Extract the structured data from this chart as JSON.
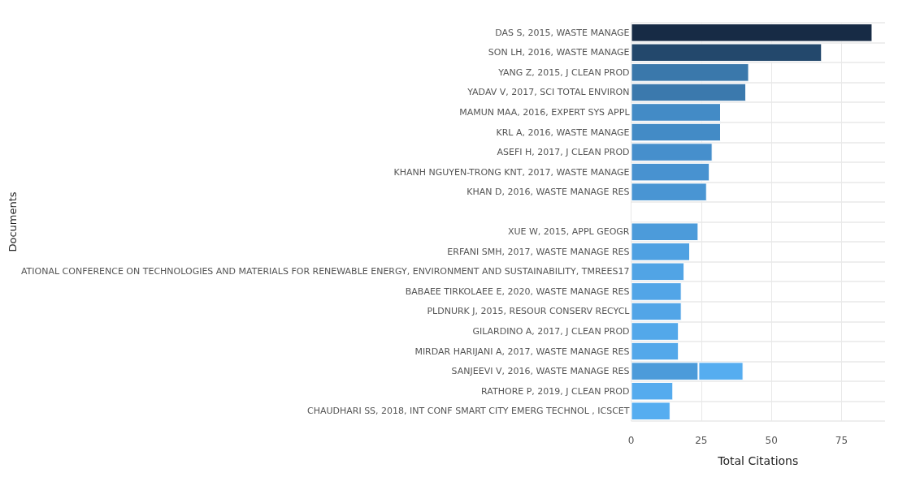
{
  "chart_data": {
    "type": "bar",
    "orientation": "horizontal",
    "stacked": true,
    "xlabel": "Total Citations",
    "ylabel": "Documents",
    "categories": [
      "DAS S, 2015, WASTE MANAGE",
      "SON LH, 2016, WASTE MANAGE",
      "YANG Z, 2015, J CLEAN PROD",
      "YADAV V, 2017, SCI TOTAL ENVIRON",
      "MAMUN MAA, 2016, EXPERT SYS APPL",
      "KRL A, 2016, WASTE MANAGE",
      "ASEFI H, 2017, J CLEAN PROD",
      "KHANH NGUYEN-TRONG KNT, 2017, WASTE MANAGE",
      "KHAN D, 2016, WASTE MANAGE RES",
      null,
      "XUE W, 2015, APPL GEOGR",
      "ERFANI SMH, 2017, WASTE MANAGE RES",
      "ATIONAL CONFERENCE ON TECHNOLOGIES AND MATERIALS FOR RENEWABLE ENERGY, ENVIRONMENT AND SUSTAINABILITY, TMREES17",
      "BABAEE TIRKOLAEE E, 2020, WASTE MANAGE RES",
      "PLDNURK J, 2015, RESOUR CONSERV RECYCL",
      "GILARDINO A, 2017, J CLEAN PROD",
      "MIRDAR HARIJANI A, 2017, WASTE MANAGE RES",
      "SANJEEVI V, 2016, WASTE MANAGE RES",
      "RATHORE P, 2019, J CLEAN PROD",
      "CHAUDHARI SS, 2018, INT CONF SMART CITY EMERG TECHNOL , ICSCET"
    ],
    "series": [
      {
        "values": [
          86,
          68,
          42,
          41,
          32,
          32,
          29,
          28,
          27,
          null,
          24,
          21,
          19,
          18,
          18,
          17,
          17,
          24,
          15,
          14
        ],
        "colors": [
          "#172b45",
          "#23486c",
          "#3a78ab",
          "#3b79ad",
          "#438bc6",
          "#438bc6",
          "#468fcc",
          "#4892d0",
          "#4995d3",
          null,
          "#4c9bda",
          "#4fa1e2",
          "#51a4e5",
          "#52a5e7",
          "#52a5e7",
          "#53a8ea",
          "#53a8ea",
          "#4c9bda",
          "#55abee",
          "#56adf0"
        ]
      },
      {
        "values": [
          null,
          null,
          null,
          null,
          null,
          null,
          null,
          null,
          null,
          null,
          null,
          null,
          null,
          null,
          null,
          null,
          null,
          16,
          null,
          null
        ],
        "color": "#56adf0"
      }
    ],
    "xlim": [
      0,
      90.5
    ],
    "xticks": [
      0,
      25,
      50,
      75
    ],
    "grid": true
  }
}
